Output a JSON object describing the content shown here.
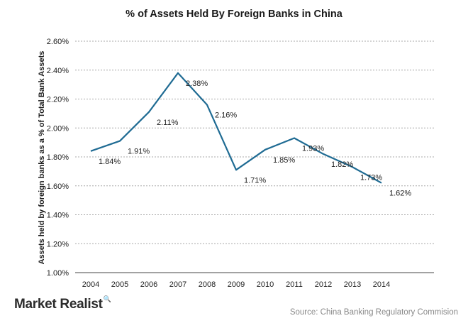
{
  "brand": {
    "name": "Market Realist",
    "icon": "magnifier-chart-icon"
  },
  "source": "Source: China Banking Regulatory Commision",
  "chart_data": {
    "type": "line",
    "title": "% of Assets Held By Foreign Banks in China",
    "xlabel": "",
    "ylabel": "Assets held by foreign banks as a % of Total Bank Assets",
    "categories": [
      "2004",
      "2005",
      "2006",
      "2007",
      "2008",
      "2009",
      "2010",
      "2011",
      "2012",
      "2013",
      "2014"
    ],
    "series": [
      {
        "values": [
          1.84,
          1.91,
          2.11,
          2.38,
          2.16,
          1.71,
          1.85,
          1.93,
          1.82,
          1.73,
          1.62
        ],
        "labels": [
          "1.84%",
          "1.91%",
          "2.11%",
          "2.38%",
          "2.16%",
          "1.71%",
          "1.85%",
          "1.93%",
          "1.82%",
          "1.73%",
          "1.62%"
        ],
        "color": "#1f6b93"
      }
    ],
    "ylim": [
      1.0,
      2.6
    ],
    "yticks": [
      1.0,
      1.2,
      1.4,
      1.6,
      1.8,
      2.0,
      2.2,
      2.4,
      2.6
    ],
    "ytick_labels": [
      "1.00%",
      "1.20%",
      "1.40%",
      "1.60%",
      "1.80%",
      "2.00%",
      "2.20%",
      "2.40%",
      "2.60%"
    ],
    "grid": true,
    "legend": "none"
  }
}
